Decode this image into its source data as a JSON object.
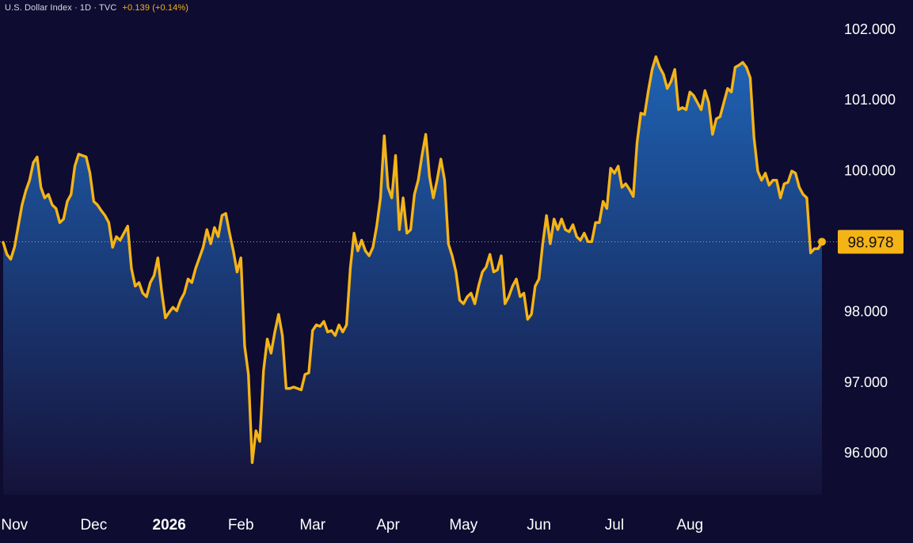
{
  "header": {
    "symbol_info": "U.S. Dollar Index · 1D · TVC",
    "change": "+0.139 (+0.14%)"
  },
  "colors": {
    "background": "#0f0c31",
    "line": "#f5b416",
    "area_top": "#1f63b4",
    "area_bottom": "#15123a",
    "text": "#ffffff"
  },
  "chart_data": {
    "type": "area",
    "title": "",
    "xlabel": "",
    "ylabel": "",
    "ylim": [
      95.4,
      102.35
    ],
    "yticks": [
      "102.000",
      "101.000",
      "100.000",
      "98.000",
      "97.000",
      "96.000"
    ],
    "ytick_values": [
      102,
      101,
      100,
      98,
      97,
      96
    ],
    "xticks": [
      {
        "label": "Nov",
        "index": 3,
        "bold": false
      },
      {
        "label": "Dec",
        "index": 24,
        "bold": false
      },
      {
        "label": "2026",
        "index": 44,
        "bold": true
      },
      {
        "label": "Feb",
        "index": 63,
        "bold": false
      },
      {
        "label": "Mar",
        "index": 82,
        "bold": false
      },
      {
        "label": "Apr",
        "index": 102,
        "bold": false
      },
      {
        "label": "May",
        "index": 122,
        "bold": false
      },
      {
        "label": "Jun",
        "index": 142,
        "bold": false
      },
      {
        "label": "Jul",
        "index": 162,
        "bold": false
      },
      {
        "label": "Aug",
        "index": 182,
        "bold": false
      }
    ],
    "last_value": 98.978,
    "last_value_label": "98.978",
    "reference_line": 98.978,
    "values": [
      98.97,
      98.8,
      98.73,
      98.9,
      99.2,
      99.5,
      99.7,
      99.85,
      100.1,
      100.18,
      99.75,
      99.6,
      99.65,
      99.5,
      99.45,
      99.25,
      99.3,
      99.55,
      99.65,
      100.05,
      100.22,
      100.2,
      100.18,
      99.95,
      99.55,
      99.5,
      99.42,
      99.35,
      99.25,
      98.9,
      99.05,
      99.0,
      99.1,
      99.2,
      98.6,
      98.35,
      98.4,
      98.25,
      98.2,
      98.4,
      98.5,
      98.75,
      98.28,
      97.9,
      97.98,
      98.05,
      98.0,
      98.15,
      98.25,
      98.45,
      98.4,
      98.6,
      98.75,
      98.9,
      99.15,
      98.95,
      99.18,
      99.05,
      99.35,
      99.38,
      99.1,
      98.85,
      98.55,
      98.75,
      97.5,
      97.1,
      95.85,
      96.3,
      96.15,
      97.15,
      97.6,
      97.4,
      97.7,
      97.95,
      97.65,
      96.9,
      96.9,
      96.92,
      96.9,
      96.88,
      97.1,
      97.12,
      97.72,
      97.8,
      97.78,
      97.85,
      97.7,
      97.72,
      97.65,
      97.8,
      97.7,
      97.8,
      98.6,
      99.1,
      98.85,
      99.0,
      98.85,
      98.78,
      98.9,
      99.2,
      99.6,
      100.48,
      99.75,
      99.6,
      100.2,
      99.15,
      99.6,
      99.1,
      99.15,
      99.65,
      99.85,
      100.2,
      100.5,
      99.9,
      99.6,
      99.85,
      100.15,
      99.85,
      98.95,
      98.78,
      98.55,
      98.15,
      98.1,
      98.2,
      98.25,
      98.1,
      98.35,
      98.55,
      98.62,
      98.8,
      98.55,
      98.58,
      98.78,
      98.1,
      98.2,
      98.35,
      98.45,
      98.2,
      98.25,
      97.88,
      97.95,
      98.35,
      98.45,
      98.95,
      99.35,
      98.95,
      99.3,
      99.15,
      99.3,
      99.15,
      99.12,
      99.22,
      99.05,
      99.0,
      99.1,
      98.98,
      98.98,
      99.25,
      99.25,
      99.55,
      99.45,
      100.02,
      99.95,
      100.05,
      99.75,
      99.8,
      99.72,
      99.62,
      100.38,
      100.8,
      100.78,
      101.12,
      101.42,
      101.6,
      101.45,
      101.35,
      101.15,
      101.25,
      101.42,
      100.85,
      100.88,
      100.85,
      101.1,
      101.05,
      100.95,
      100.85,
      101.12,
      100.95,
      100.5,
      100.72,
      100.75,
      100.95,
      101.15,
      101.1,
      101.45,
      101.48,
      101.52,
      101.45,
      101.3,
      100.45,
      99.98,
      99.85,
      99.95,
      99.78,
      99.85,
      99.85,
      99.6,
      99.8,
      99.82,
      99.98,
      99.95,
      99.75,
      99.65,
      99.6,
      98.82,
      98.88,
      98.88,
      98.978
    ]
  }
}
